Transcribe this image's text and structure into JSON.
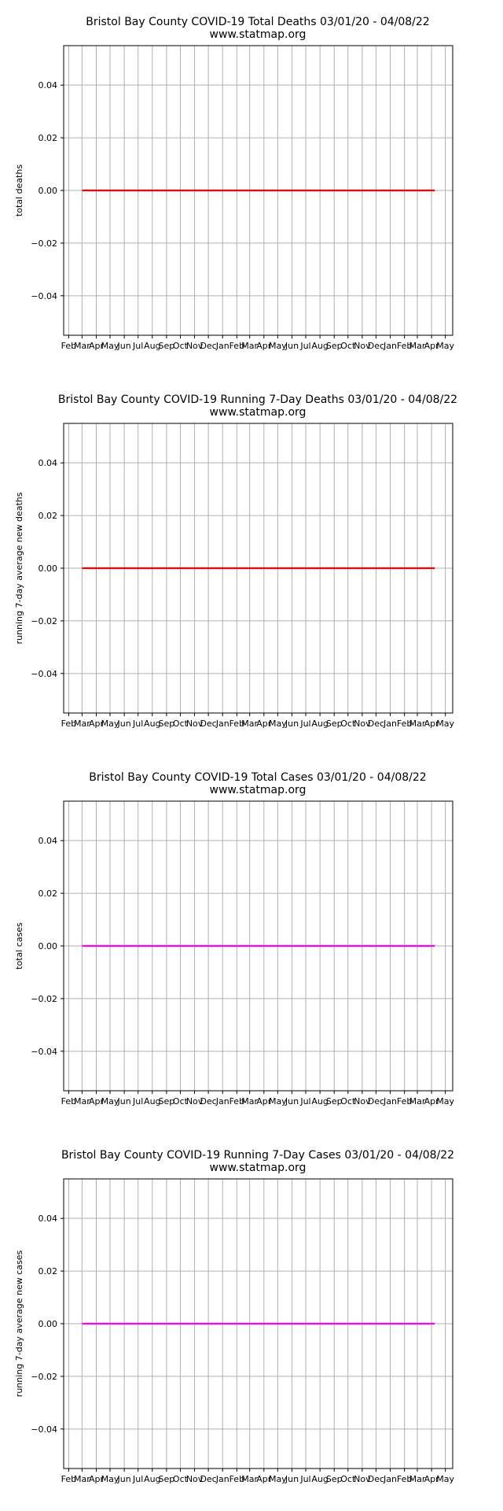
{
  "colors": {
    "deaths": "#ff0000",
    "cases": "#ff00ff",
    "grid": "#b0b0b0",
    "axes": "#000000"
  },
  "x_tick_labels": [
    "Feb",
    "Mar",
    "Apr",
    "May",
    "Jun",
    "Jul",
    "Aug",
    "Sep",
    "Oct",
    "Nov",
    "Dec",
    "Jan",
    "Feb",
    "Mar",
    "Apr",
    "May",
    "Jun",
    "Jul",
    "Aug",
    "Sep",
    "Oct",
    "Nov",
    "Dec",
    "Jan",
    "Feb",
    "Mar",
    "Apr",
    "May"
  ],
  "y_tick_labels": [
    "0.04",
    "0.02",
    "0.00",
    "−0.02",
    "−0.04"
  ],
  "chart_data": [
    {
      "type": "line",
      "title": "Bristol Bay County COVID-19 Total Deaths 03/01/20 - 04/08/22",
      "subtitle": "www.statmap.org",
      "xlabel": "",
      "ylabel": "total deaths",
      "x_range": [
        "2020-03-01",
        "2022-04-08"
      ],
      "ylim": [
        -0.055,
        0.055
      ],
      "y_ticks": [
        0.04,
        0.02,
        0.0,
        -0.02,
        -0.04
      ],
      "grid": true,
      "color": "#ff0000",
      "series": [
        {
          "x": [
            "2020-03-01",
            "2022-04-08"
          ],
          "values": [
            0,
            0
          ]
        }
      ]
    },
    {
      "type": "line",
      "title": "Bristol Bay County COVID-19 Running 7-Day Deaths 03/01/20 - 04/08/22",
      "subtitle": "www.statmap.org",
      "xlabel": "",
      "ylabel": "running 7-day average new deaths",
      "x_range": [
        "2020-03-01",
        "2022-04-08"
      ],
      "ylim": [
        -0.055,
        0.055
      ],
      "y_ticks": [
        0.04,
        0.02,
        0.0,
        -0.02,
        -0.04
      ],
      "grid": true,
      "color": "#ff0000",
      "series": [
        {
          "x": [
            "2020-03-01",
            "2022-04-08"
          ],
          "values": [
            0,
            0
          ]
        }
      ]
    },
    {
      "type": "line",
      "title": "Bristol Bay County COVID-19 Total Cases 03/01/20 - 04/08/22",
      "subtitle": "www.statmap.org",
      "xlabel": "",
      "ylabel": "total cases",
      "x_range": [
        "2020-03-01",
        "2022-04-08"
      ],
      "ylim": [
        -0.055,
        0.055
      ],
      "y_ticks": [
        0.04,
        0.02,
        0.0,
        -0.02,
        -0.04
      ],
      "grid": true,
      "color": "#ff00ff",
      "series": [
        {
          "x": [
            "2020-03-01",
            "2022-04-08"
          ],
          "values": [
            0,
            0
          ]
        }
      ]
    },
    {
      "type": "line",
      "title": "Bristol Bay County COVID-19 Running 7-Day Cases 03/01/20 - 04/08/22",
      "subtitle": "www.statmap.org",
      "xlabel": "",
      "ylabel": "running 7-day average new cases",
      "x_range": [
        "2020-03-01",
        "2022-04-08"
      ],
      "ylim": [
        -0.055,
        0.055
      ],
      "y_ticks": [
        0.04,
        0.02,
        0.0,
        -0.02,
        -0.04
      ],
      "grid": true,
      "color": "#ff00ff",
      "series": [
        {
          "x": [
            "2020-03-01",
            "2022-04-08"
          ],
          "values": [
            0,
            0
          ]
        }
      ]
    }
  ]
}
